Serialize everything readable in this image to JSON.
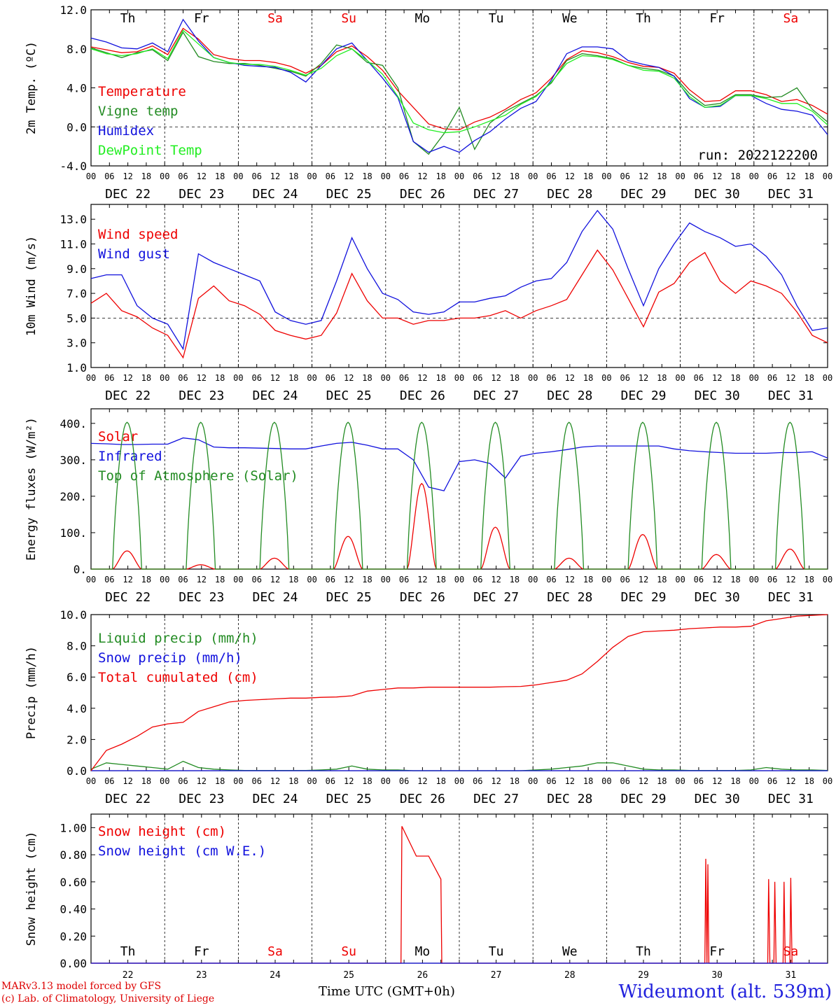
{
  "run_label": "run: 2022122200",
  "footer": {
    "model_line": "MARv3.13 model forced by GFS",
    "credit_line": "(c) Lab. of Climatology, University of Liege",
    "station": "Wideumont (alt. 539m)",
    "time_axis_title": "Time UTC (GMT+0h)"
  },
  "days": [
    {
      "weekday": "Th",
      "date": "DEC 22",
      "day_num": "22",
      "weekend": false
    },
    {
      "weekday": "Fr",
      "date": "DEC 23",
      "day_num": "23",
      "weekend": false
    },
    {
      "weekday": "Sa",
      "date": "DEC 24",
      "day_num": "24",
      "weekend": true
    },
    {
      "weekday": "Su",
      "date": "DEC 25",
      "day_num": "25",
      "weekend": true
    },
    {
      "weekday": "Mo",
      "date": "DEC 26",
      "day_num": "26",
      "weekend": false
    },
    {
      "weekday": "Tu",
      "date": "DEC 27",
      "day_num": "27",
      "weekend": false
    },
    {
      "weekday": "We",
      "date": "DEC 28",
      "day_num": "28",
      "weekend": false
    },
    {
      "weekday": "Th",
      "date": "DEC 29",
      "day_num": "29",
      "weekend": false
    },
    {
      "weekday": "Fr",
      "date": "DEC 30",
      "day_num": "30",
      "weekend": false
    },
    {
      "weekday": "Sa",
      "date": "DEC 31",
      "day_num": "31",
      "weekend": true
    }
  ],
  "hour_ticks": [
    "00",
    "06",
    "12",
    "18"
  ],
  "colors": {
    "red": "#ee0000",
    "green": "#228b22",
    "blue": "#1111dd",
    "light_green": "#22ee22",
    "weekend": "#ee0000"
  },
  "chart_data": [
    {
      "id": "temp",
      "type": "line",
      "ylabel": "2m Temp. (ºC)",
      "ylim": [
        -4,
        12
      ],
      "y_ticks": [
        "-4.0",
        "0.0",
        "4.0",
        "8.0",
        "12.0"
      ],
      "ref_line": 0,
      "x": "hours since DEC 22 00 UTC (points every 6 h)",
      "series": [
        {
          "name": "Temperature",
          "color": "red",
          "values": [
            8.2,
            7.9,
            7.6,
            7.7,
            8.3,
            7.4,
            10.1,
            9.0,
            7.4,
            7.0,
            6.8,
            6.8,
            6.6,
            6.2,
            5.5,
            6.3,
            7.7,
            8.3,
            7.2,
            5.8,
            3.7,
            2.0,
            0.3,
            -0.2,
            -0.3,
            0.5,
            1.0,
            1.8,
            2.8,
            3.5,
            5.0,
            6.9,
            7.8,
            7.6,
            7.2,
            6.6,
            6.2,
            6.1,
            5.5,
            3.8,
            2.6,
            2.7,
            3.7,
            3.7,
            3.3,
            2.6,
            2.8,
            2.2,
            1.3
          ]
        },
        {
          "name": "Vigne temp",
          "color": "green",
          "values": [
            8.1,
            7.6,
            7.1,
            7.6,
            7.9,
            6.8,
            9.7,
            7.2,
            6.7,
            6.5,
            6.5,
            6.3,
            6.0,
            5.7,
            5.2,
            6.5,
            8.4,
            8.0,
            6.6,
            6.3,
            4.0,
            -1.5,
            -2.8,
            -0.7,
            2.0,
            -2.3,
            0.4,
            1.6,
            2.4,
            3.2,
            4.5,
            6.8,
            7.5,
            7.3,
            7.0,
            6.3,
            6.0,
            5.8,
            5.2,
            3.4,
            2.2,
            2.4,
            3.3,
            3.3,
            3.0,
            3.1,
            4.0,
            1.8,
            0.5
          ]
        },
        {
          "name": "Humidex",
          "color": "blue",
          "values": [
            9.1,
            8.7,
            8.1,
            8.0,
            8.6,
            7.7,
            11.0,
            8.8,
            7.1,
            6.6,
            6.3,
            6.2,
            6.1,
            5.6,
            4.6,
            6.3,
            8.0,
            8.6,
            6.8,
            5.0,
            3.0,
            -1.5,
            -2.6,
            -2.0,
            -2.6,
            -1.4,
            -0.5,
            0.8,
            1.9,
            2.6,
            4.8,
            7.5,
            8.2,
            8.2,
            8.0,
            6.8,
            6.4,
            6.1,
            5.2,
            2.9,
            2.0,
            2.1,
            3.2,
            3.2,
            2.4,
            1.8,
            1.6,
            1.2,
            -0.8
          ]
        },
        {
          "name": "DewPoint Temp",
          "color": "light_green",
          "values": [
            8.0,
            7.5,
            7.3,
            7.5,
            8.0,
            7.0,
            9.9,
            8.5,
            7.1,
            6.6,
            6.4,
            6.4,
            6.2,
            5.8,
            5.3,
            6.0,
            7.3,
            8.0,
            6.8,
            5.4,
            3.1,
            0.4,
            -0.3,
            -0.6,
            -0.5,
            0.0,
            0.6,
            1.2,
            2.3,
            3.1,
            4.6,
            6.5,
            7.3,
            7.2,
            6.9,
            6.3,
            5.8,
            5.7,
            5.0,
            3.1,
            2.0,
            2.2,
            3.2,
            3.2,
            2.9,
            2.4,
            2.4,
            1.6,
            0.2
          ]
        }
      ]
    },
    {
      "id": "wind",
      "type": "line",
      "ylabel": "10m Wind (m/s)",
      "ylim": [
        1,
        14.2
      ],
      "y_ticks": [
        "1.0",
        "3.0",
        "5.0",
        "7.0",
        "9.0",
        "11.0",
        "13.0"
      ],
      "ref_line": 5,
      "series": [
        {
          "name": "Wind speed",
          "color": "red",
          "values": [
            6.2,
            7.0,
            5.6,
            5.1,
            4.2,
            3.6,
            1.8,
            6.6,
            7.6,
            6.4,
            6.0,
            5.3,
            4.0,
            3.6,
            3.3,
            3.6,
            5.4,
            8.6,
            6.4,
            5.0,
            5.0,
            4.5,
            4.8,
            4.8,
            5.0,
            5.0,
            5.2,
            5.6,
            5.0,
            5.6,
            6.0,
            6.5,
            8.5,
            10.5,
            8.9,
            6.6,
            4.3,
            7.1,
            7.8,
            9.5,
            10.3,
            8.0,
            7.0,
            8.0,
            7.6,
            7.0,
            5.5,
            3.6,
            3.0
          ]
        },
        {
          "name": "Wind gust",
          "color": "blue",
          "values": [
            8.2,
            8.5,
            8.5,
            6.0,
            5.0,
            4.5,
            2.5,
            10.2,
            9.5,
            9.0,
            8.5,
            8.0,
            5.5,
            4.8,
            4.5,
            4.8,
            8.0,
            11.5,
            9.0,
            7.0,
            6.5,
            5.5,
            5.3,
            5.5,
            6.3,
            6.3,
            6.6,
            6.8,
            7.5,
            8.0,
            8.2,
            9.5,
            12.0,
            13.7,
            12.2,
            9.0,
            6.0,
            9.0,
            11.0,
            12.7,
            12.0,
            11.5,
            10.8,
            11.0,
            10.0,
            8.5,
            6.0,
            4.0,
            4.2
          ]
        }
      ]
    },
    {
      "id": "energy",
      "type": "line",
      "ylabel": "Energy fluxes (W/m²)",
      "ylim": [
        0,
        440
      ],
      "y_ticks": [
        "0.",
        "100.",
        "200.",
        "300.",
        "400."
      ],
      "series": [
        {
          "name": "Solar",
          "color": "red",
          "daily_peak": [
            50,
            12,
            30,
            90,
            235,
            115,
            30,
            95,
            40,
            55
          ]
        },
        {
          "name": "Infrared",
          "color": "blue",
          "values": [
            345,
            344,
            342,
            342,
            343,
            343,
            360,
            355,
            335,
            333,
            333,
            332,
            331,
            330,
            330,
            338,
            345,
            348,
            340,
            330,
            330,
            300,
            225,
            215,
            295,
            300,
            290,
            250,
            310,
            318,
            322,
            328,
            335,
            338,
            338,
            338,
            338,
            338,
            330,
            325,
            322,
            320,
            318,
            318,
            318,
            320,
            320,
            322,
            305
          ]
        },
        {
          "name": "Top of Atmosphere (Solar)",
          "color": "green",
          "daily_peak": [
            403,
            403,
            403,
            403,
            403,
            403,
            403,
            403,
            403,
            403
          ]
        }
      ]
    },
    {
      "id": "precip",
      "type": "line",
      "ylabel": "Precip (mm/h)",
      "ylim": [
        0,
        10
      ],
      "y_ticks": [
        "0.0",
        "2.0",
        "4.0",
        "6.0",
        "8.0",
        "10.0"
      ],
      "series": [
        {
          "name": "Liquid precip (mm/h)",
          "color": "green",
          "values": [
            0.1,
            0.5,
            0.4,
            0.3,
            0.2,
            0.1,
            0.6,
            0.2,
            0.1,
            0.05,
            0.02,
            0.02,
            0.02,
            0.02,
            0.02,
            0.05,
            0.1,
            0.3,
            0.1,
            0.05,
            0.05,
            0.0,
            0.0,
            0.0,
            0.0,
            0.0,
            0.0,
            0.0,
            0.0,
            0.05,
            0.1,
            0.2,
            0.3,
            0.5,
            0.5,
            0.3,
            0.1,
            0.05,
            0.05,
            0.02,
            0.02,
            0.02,
            0.02,
            0.05,
            0.2,
            0.1,
            0.05,
            0.05,
            0.02
          ]
        },
        {
          "name": "Snow precip (mm/h)",
          "color": "blue",
          "values": [
            0,
            0,
            0,
            0,
            0,
            0,
            0,
            0,
            0,
            0,
            0,
            0,
            0,
            0,
            0,
            0,
            0,
            0,
            0,
            0,
            0,
            0,
            0,
            0,
            0,
            0,
            0,
            0,
            0,
            0,
            0,
            0,
            0,
            0,
            0,
            0,
            0,
            0,
            0,
            0,
            0,
            0,
            0,
            0,
            0,
            0,
            0,
            0,
            0
          ]
        },
        {
          "name": "Total cumulated (cm)",
          "color": "red",
          "values": [
            0.0,
            1.3,
            1.7,
            2.2,
            2.8,
            3.0,
            3.1,
            3.8,
            4.1,
            4.4,
            4.5,
            4.55,
            4.6,
            4.65,
            4.65,
            4.7,
            4.72,
            4.8,
            5.1,
            5.2,
            5.3,
            5.3,
            5.35,
            5.35,
            5.35,
            5.35,
            5.35,
            5.38,
            5.4,
            5.5,
            5.65,
            5.8,
            6.2,
            7.0,
            7.9,
            8.6,
            8.9,
            8.95,
            9.0,
            9.1,
            9.15,
            9.2,
            9.2,
            9.25,
            9.6,
            9.75,
            9.9,
            9.95,
            10.0
          ]
        }
      ]
    },
    {
      "id": "snow",
      "type": "line",
      "ylabel": "Snow height (cm)",
      "ylim": [
        0,
        1.1
      ],
      "y_ticks": [
        "0.00",
        "0.20",
        "0.40",
        "0.60",
        "0.80",
        "1.00"
      ],
      "series": [
        {
          "name": "Snow height (cm)",
          "color": "red",
          "points": [
            [
              0,
              0
            ],
            [
              101,
              0
            ],
            [
              101.3,
              1.01
            ],
            [
              106,
              0.79
            ],
            [
              110,
              0.79
            ],
            [
              114,
              0.62
            ],
            [
              114.3,
              0
            ],
            [
              200,
              0
            ],
            [
              200.3,
              0.77
            ],
            [
              200.7,
              0
            ],
            [
              201,
              0.73
            ],
            [
              201.3,
              0
            ],
            [
              220.5,
              0
            ],
            [
              220.8,
              0.62
            ],
            [
              221.2,
              0
            ],
            [
              222.5,
              0
            ],
            [
              222.8,
              0.6
            ],
            [
              223.2,
              0
            ],
            [
              225.5,
              0
            ],
            [
              225.8,
              0.6
            ],
            [
              226.2,
              0
            ],
            [
              227.7,
              0
            ],
            [
              228,
              0.63
            ],
            [
              228.4,
              0
            ],
            [
              240,
              0
            ]
          ]
        },
        {
          "name": "Snow height (cm W.E.)",
          "color": "blue",
          "values": [
            0,
            0
          ]
        }
      ]
    }
  ]
}
